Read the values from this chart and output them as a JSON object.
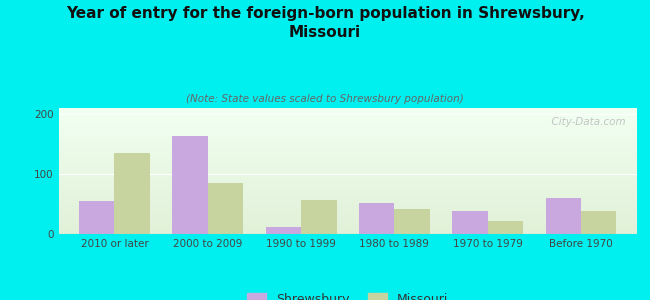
{
  "title": "Year of entry for the foreign-born population in Shrewsbury,\nMissouri",
  "subtitle": "(Note: State values scaled to Shrewsbury population)",
  "categories": [
    "2010 or later",
    "2000 to 2009",
    "1990 to 1999",
    "1980 to 1989",
    "1970 to 1979",
    "Before 1970"
  ],
  "shrewsbury_values": [
    55,
    163,
    12,
    52,
    38,
    60
  ],
  "missouri_values": [
    135,
    85,
    57,
    42,
    22,
    38
  ],
  "shrewsbury_color": "#c9a8e0",
  "missouri_color": "#c8d4a0",
  "background_color": "#00efef",
  "ylim": [
    0,
    210
  ],
  "yticks": [
    0,
    100,
    200
  ],
  "bar_width": 0.38,
  "watermark": "  City-Data.com",
  "legend_shrewsbury": "Shrewsbury",
  "legend_missouri": "Missouri",
  "title_fontsize": 11,
  "subtitle_fontsize": 7.5,
  "tick_fontsize": 7.5,
  "legend_fontsize": 9
}
